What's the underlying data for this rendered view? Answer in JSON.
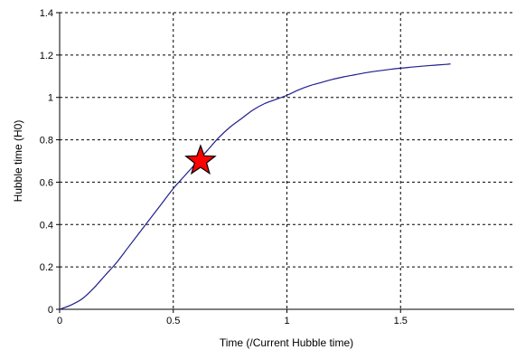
{
  "chart_data": {
    "type": "line",
    "title": "",
    "xlabel": "Time (/Current Hubble time)",
    "ylabel": "Hubble time (H0)",
    "xlim": [
      0,
      2
    ],
    "ylim": [
      0,
      1.4
    ],
    "x_ticks": [
      0,
      0.5,
      1,
      1.5
    ],
    "x_tick_labels": [
      "0",
      "0.5",
      "1",
      "1.5"
    ],
    "y_ticks": [
      0,
      0.2,
      0.4,
      0.6,
      0.8,
      1,
      1.2,
      1.4
    ],
    "y_tick_labels": [
      "0",
      "0.2",
      "0.4",
      "0.6",
      "0.8",
      "1",
      "1.2",
      "1.4"
    ],
    "grid": true,
    "legend": "none",
    "series": [
      {
        "color": "#1f1f8f",
        "x": [
          0,
          0.05,
          0.1,
          0.15,
          0.2,
          0.25,
          0.3,
          0.35,
          0.4,
          0.45,
          0.5,
          0.55,
          0.6,
          0.65,
          0.7,
          0.75,
          0.8,
          0.85,
          0.9,
          0.95,
          1.0,
          1.05,
          1.1,
          1.15,
          1.2,
          1.25,
          1.3,
          1.35,
          1.4,
          1.45,
          1.5,
          1.55,
          1.6,
          1.65,
          1.7,
          1.72
        ],
        "y": [
          0,
          0.02,
          0.05,
          0.1,
          0.16,
          0.22,
          0.29,
          0.36,
          0.43,
          0.5,
          0.57,
          0.63,
          0.69,
          0.75,
          0.81,
          0.86,
          0.9,
          0.94,
          0.97,
          0.99,
          1.01,
          1.035,
          1.055,
          1.07,
          1.085,
          1.097,
          1.107,
          1.117,
          1.125,
          1.132,
          1.138,
          1.143,
          1.148,
          1.152,
          1.156,
          1.158
        ]
      }
    ],
    "markers": [
      {
        "shape": "star",
        "x": 0.62,
        "y": 0.7,
        "fill": "#ff0000",
        "stroke": "#000000"
      }
    ]
  }
}
